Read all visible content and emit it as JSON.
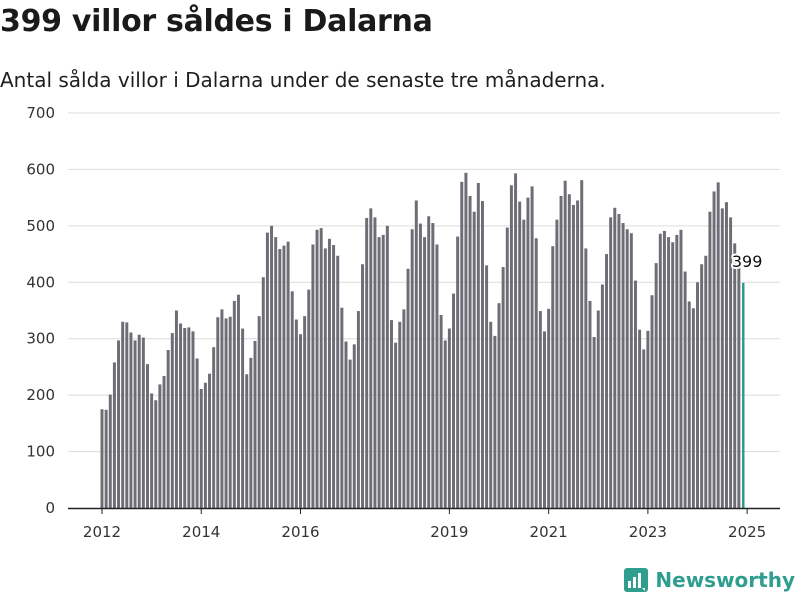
{
  "header": {
    "title": "399 villor såldes i Dalarna",
    "subtitle": "Antal sålda villor i Dalarna under de senaste tre månaderna."
  },
  "brand": {
    "name": "Newsworthy",
    "icon": "newsworthy-logo-icon"
  },
  "colors": {
    "bar": "#6e6d75",
    "highlight": "#2a9d8f",
    "grid": "#dcdcdc",
    "axis": "#222222"
  },
  "chart_data": {
    "type": "bar",
    "title": "399 villor såldes i Dalarna",
    "subtitle": "Antal sålda villor i Dalarna under de senaste tre månaderna.",
    "ylim": [
      0,
      700
    ],
    "yticks": [
      0,
      100,
      200,
      300,
      400,
      500,
      600,
      700
    ],
    "xticks": [
      "2012",
      "2014",
      "2016",
      "2019",
      "2021",
      "2023",
      "2025"
    ],
    "xtick_positions": [
      2012,
      2014,
      2016,
      2019,
      2021,
      2023,
      2025
    ],
    "grid": true,
    "annotation": {
      "label": "399",
      "x": 2025,
      "value": 399
    },
    "x_start": 2012,
    "x_step_months": 1,
    "values": [
      175,
      174,
      201,
      258,
      297,
      330,
      329,
      311,
      297,
      307,
      302,
      255,
      203,
      191,
      219,
      234,
      280,
      310,
      350,
      327,
      319,
      320,
      313,
      265,
      211,
      222,
      238,
      285,
      338,
      352,
      336,
      339,
      367,
      378,
      318,
      237,
      266,
      296,
      340,
      409,
      488,
      500,
      480,
      459,
      465,
      472,
      384,
      334,
      308,
      340,
      387,
      467,
      493,
      496,
      460,
      477,
      466,
      447,
      355,
      295,
      263,
      290,
      349,
      432,
      514,
      531,
      515,
      480,
      484,
      500,
      333,
      293,
      330,
      352,
      424,
      494,
      545,
      504,
      480,
      517,
      505,
      467,
      342,
      297,
      318,
      380,
      481,
      578,
      594,
      553,
      525,
      576,
      544,
      430,
      330,
      305,
      363,
      427,
      497,
      572,
      593,
      543,
      511,
      550,
      570,
      478,
      349,
      313,
      353,
      464,
      511,
      553,
      580,
      556,
      537,
      545,
      581,
      460,
      367,
      303,
      350,
      396,
      450,
      515,
      532,
      521,
      505,
      494,
      487,
      403,
      316,
      281,
      314,
      377,
      434,
      486,
      491,
      480,
      471,
      484,
      493,
      419,
      366,
      354,
      400,
      432,
      447,
      525,
      561,
      577,
      531,
      542,
      515,
      469,
      440,
      399
    ]
  }
}
